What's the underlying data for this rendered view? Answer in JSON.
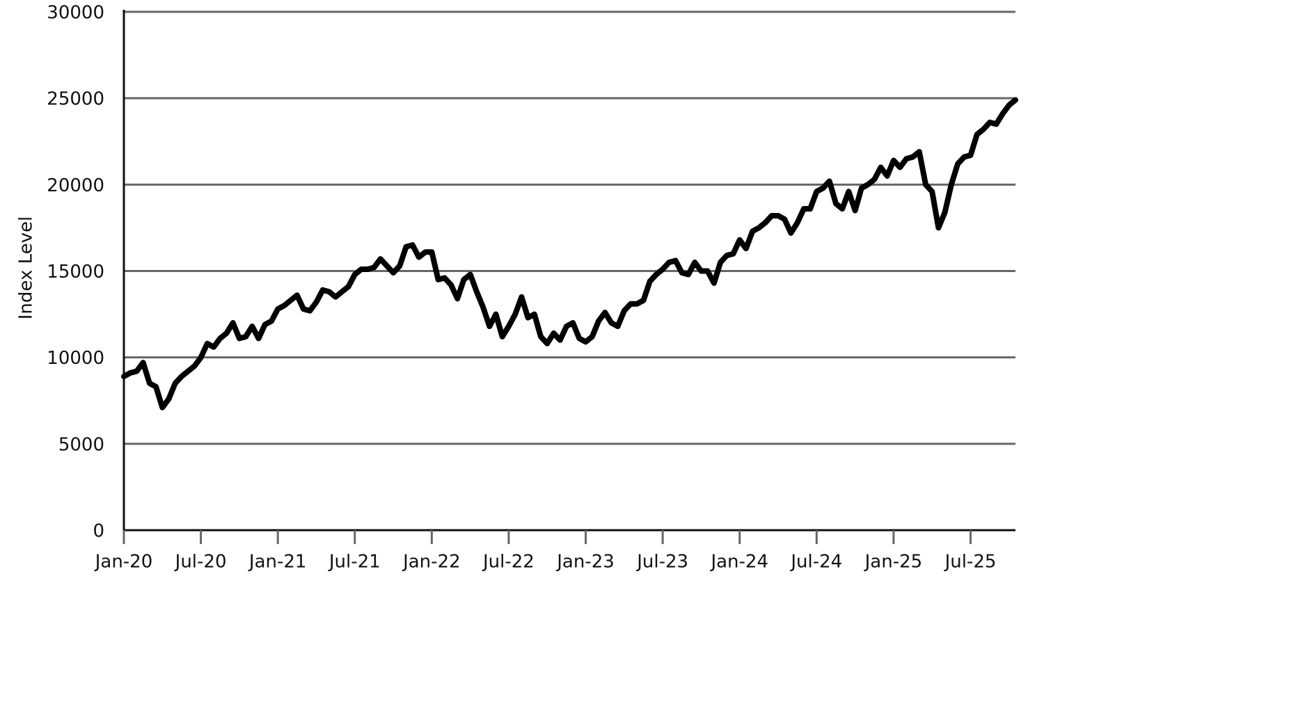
{
  "chart_data": {
    "type": "line",
    "y_label": "Index Level",
    "categories": [
      "Jan-20",
      null,
      null,
      null,
      null,
      null,
      null,
      null,
      null,
      null,
      null,
      null,
      "Jul-20",
      null,
      null,
      null,
      null,
      null,
      null,
      null,
      null,
      null,
      null,
      null,
      "Jan-21",
      null,
      null,
      null,
      null,
      null,
      null,
      null,
      null,
      null,
      null,
      null,
      "Jul-21",
      null,
      null,
      null,
      null,
      null,
      null,
      null,
      null,
      null,
      null,
      null,
      "Jan-22",
      null,
      null,
      null,
      null,
      null,
      null,
      null,
      null,
      null,
      null,
      null,
      "Jul-22",
      null,
      null,
      null,
      null,
      null,
      null,
      null,
      null,
      null,
      null,
      null,
      "Jan-23",
      null,
      null,
      null,
      null,
      null,
      null,
      null,
      null,
      null,
      null,
      null,
      "Jul-23",
      null,
      null,
      null,
      null,
      null,
      null,
      null,
      null,
      null,
      null,
      null,
      "Jan-24",
      null,
      null,
      null,
      null,
      null,
      null,
      null,
      null,
      null,
      null,
      null,
      "Jul-24",
      null,
      null,
      null,
      null,
      null,
      null,
      null,
      null,
      null,
      null,
      null,
      "Jan-25",
      null,
      null,
      null,
      null,
      null,
      null,
      null,
      null,
      null,
      null,
      null,
      "Jul-25",
      null,
      null,
      null,
      null,
      null,
      null,
      null
    ],
    "series": [
      {
        "color": "#000000",
        "values": [
          8900,
          9100,
          9200,
          9700,
          8500,
          8300,
          7100,
          7600,
          8500,
          8900,
          9200,
          9500,
          10000,
          10800,
          10600,
          11100,
          11400,
          12000,
          11100,
          11200,
          11800,
          11100,
          11900,
          12100,
          12800,
          13000,
          13300,
          13600,
          12800,
          12700,
          13200,
          13900,
          13800,
          13500,
          13800,
          14100,
          14800,
          15100,
          15100,
          15200,
          15700,
          15300,
          14900,
          15300,
          16400,
          16500,
          15800,
          16100,
          16100,
          14500,
          14600,
          14200,
          13400,
          14500,
          14800,
          13800,
          12900,
          11800,
          12500,
          11200,
          11800,
          12500,
          13500,
          12300,
          12500,
          11200,
          10800,
          11400,
          11000,
          11800,
          12000,
          11100,
          10900,
          11200,
          12100,
          12600,
          12000,
          11800,
          12700,
          13100,
          13100,
          13300,
          14400,
          14800,
          15100,
          15500,
          15600,
          14900,
          14800,
          15500,
          15000,
          15000,
          14300,
          15500,
          15900,
          16000,
          16800,
          16300,
          17300,
          17500,
          17800,
          18200,
          18200,
          18000,
          17200,
          17800,
          18600,
          18600,
          19600,
          19800,
          20200,
          18900,
          18600,
          19600,
          18500,
          19800,
          20000,
          20300,
          21000,
          20500,
          21400,
          21000,
          21500,
          21600,
          21900,
          20000,
          19600,
          17500,
          18400,
          20000,
          21200,
          21600,
          21700,
          22900,
          23200,
          23600,
          23500,
          24100,
          24600,
          24900
        ]
      }
    ],
    "ylim": [
      0,
      30000
    ],
    "yticks": [
      0,
      5000,
      10000,
      15000,
      20000,
      25000,
      30000
    ],
    "grid": true
  }
}
